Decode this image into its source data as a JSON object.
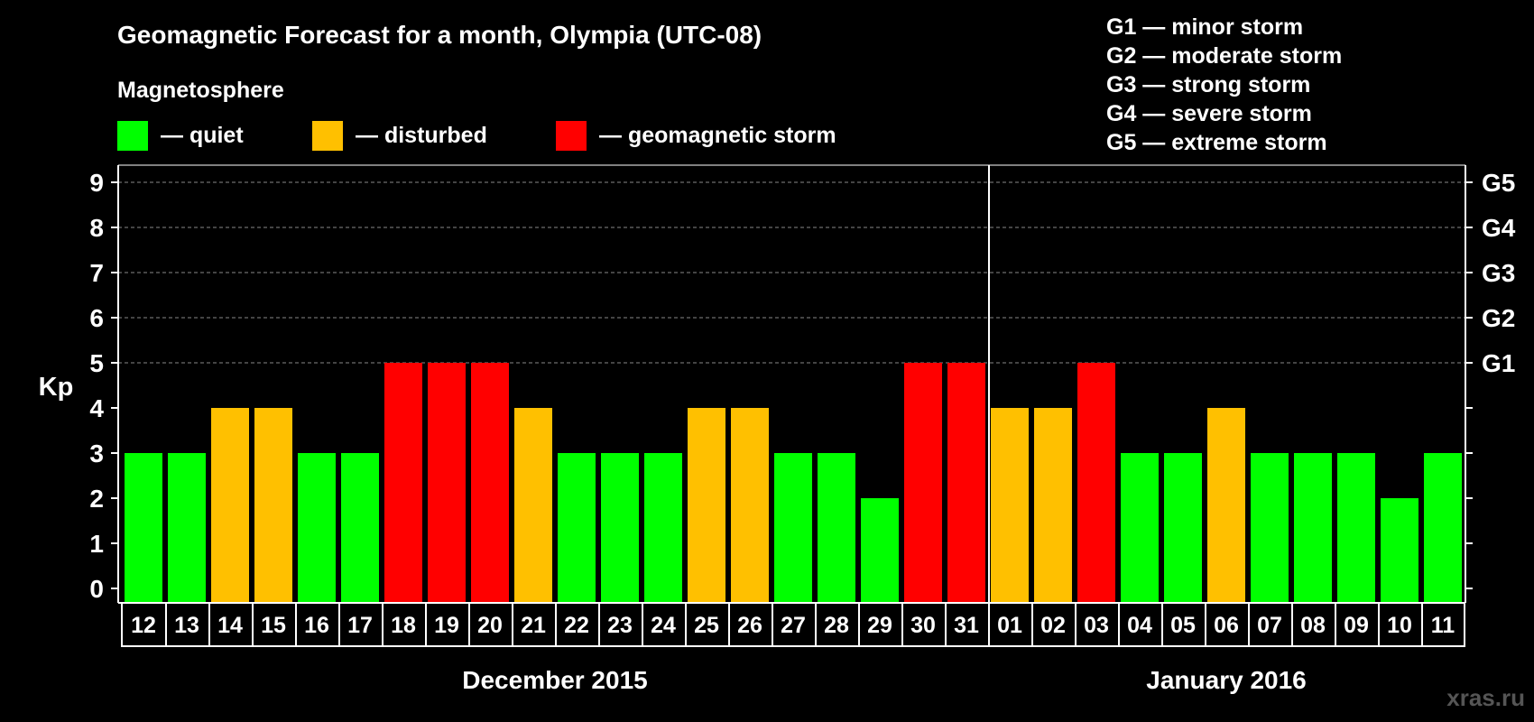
{
  "chart_data": {
    "type": "bar",
    "title": "Geomagnetic Forecast for a month, Olympia (UTC-08)",
    "ylabel": "Kp",
    "ylim": [
      0,
      9
    ],
    "yticks": [
      "0",
      "1",
      "2",
      "3",
      "4",
      "5",
      "6",
      "7",
      "8",
      "9"
    ],
    "right_axis": [
      {
        "kp": 5,
        "label": "G1"
      },
      {
        "kp": 6,
        "label": "G2"
      },
      {
        "kp": 7,
        "label": "G3"
      },
      {
        "kp": 8,
        "label": "G4"
      },
      {
        "kp": 9,
        "label": "G5"
      }
    ],
    "legend_title": "Magnetosphere",
    "legend": [
      {
        "color": "#00ff00",
        "label": "— quiet"
      },
      {
        "color": "#ffc000",
        "label": "— disturbed"
      },
      {
        "color": "#ff0000",
        "label": "— geomagnetic storm"
      }
    ],
    "storm_scale": [
      "G1 — minor storm",
      "G2 — moderate storm",
      "G3 — strong storm",
      "G4 — severe storm",
      "G5 — extreme storm"
    ],
    "categories": [
      "12",
      "13",
      "14",
      "15",
      "16",
      "17",
      "18",
      "19",
      "20",
      "21",
      "22",
      "23",
      "24",
      "25",
      "26",
      "27",
      "28",
      "29",
      "30",
      "31",
      "01",
      "02",
      "03",
      "04",
      "05",
      "06",
      "07",
      "08",
      "09",
      "10",
      "11"
    ],
    "values": [
      3,
      3,
      4,
      4,
      3,
      3,
      5,
      5,
      5,
      4,
      3,
      3,
      3,
      4,
      4,
      3,
      3,
      2,
      5,
      5,
      4,
      4,
      5,
      3,
      3,
      4,
      3,
      3,
      3,
      2,
      3
    ],
    "months": [
      {
        "label": "December 2015",
        "start": 0,
        "end": 19
      },
      {
        "label": "January 2016",
        "start": 20,
        "end": 30
      }
    ],
    "month_divider_after_index": 19,
    "colors": {
      "quiet": "#00ff00",
      "disturbed": "#ffc000",
      "storm": "#ff0000"
    },
    "thresholds": {
      "disturbed": 4,
      "storm": 5
    },
    "grid": true
  },
  "watermark": "xras.ru"
}
